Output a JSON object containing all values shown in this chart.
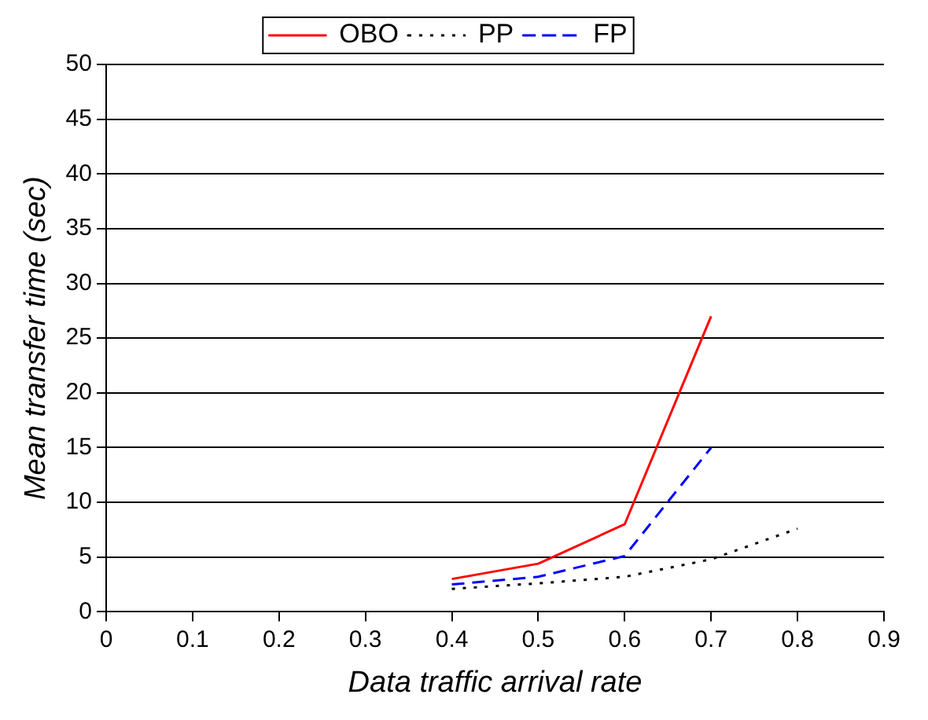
{
  "chart_data": {
    "type": "line",
    "xlabel": "Data traffic arrival rate",
    "ylabel": "Mean transfer time (sec)",
    "series": [
      {
        "name": "OBO",
        "color": "#ff0000",
        "line_style": "solid",
        "x": [
          0.4,
          0.5,
          0.6,
          0.7
        ],
        "values": [
          3.0,
          4.4,
          8.0,
          27
        ]
      },
      {
        "name": "PP",
        "color": "#000000",
        "line_style": "dotted",
        "x": [
          0.4,
          0.5,
          0.6,
          0.7,
          0.8
        ],
        "values": [
          2.1,
          2.6,
          3.2,
          4.8,
          7.6
        ]
      },
      {
        "name": "FP",
        "color": "#0000ff",
        "line_style": "dashed",
        "x": [
          0.4,
          0.5,
          0.6,
          0.7
        ],
        "values": [
          2.5,
          3.2,
          5.1,
          15
        ]
      }
    ],
    "xlim": [
      0,
      0.9
    ],
    "xticks": [
      0,
      0.1,
      0.2,
      0.3,
      0.4,
      0.5,
      0.6,
      0.7,
      0.8,
      0.9
    ],
    "ylim": [
      0,
      50
    ],
    "yticks": [
      0,
      5,
      10,
      15,
      20,
      25,
      30,
      35,
      40,
      45,
      50
    ],
    "grid": "y",
    "legend": "top",
    "marker": "none"
  }
}
